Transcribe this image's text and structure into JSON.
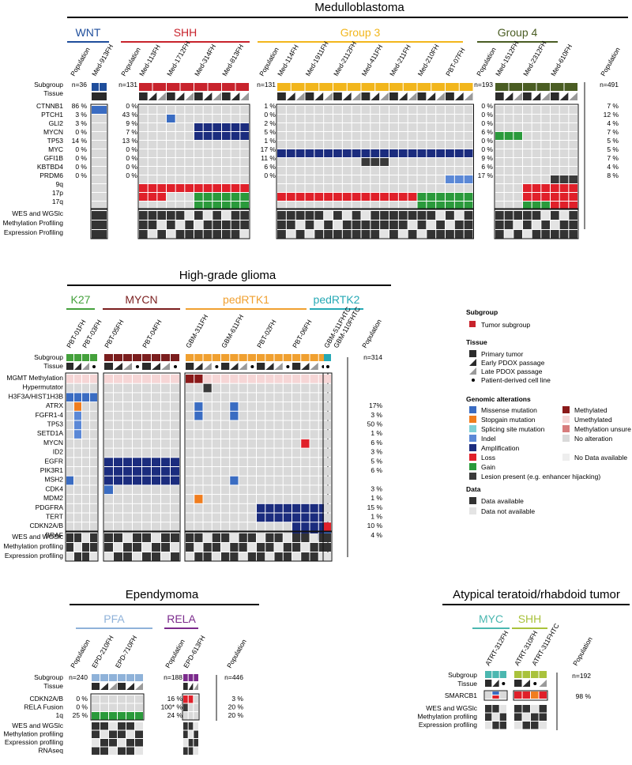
{
  "colors": {
    "wnt": "#1f4e9c",
    "shh": "#c8232c",
    "group3": "#f2b61c",
    "group4": "#4a5d23",
    "k27": "#44a13c",
    "mycn": "#7b1e1e",
    "pedrtk1": "#f0a030",
    "pedrtk2": "#26a9b5",
    "pfa": "#8fb2d9",
    "rela": "#7b2a8c",
    "atrt_myc": "#4bb7b0",
    "atrt_shh": "#a9c23c",
    "missense": "#3a6cc2",
    "stopgain": "#f07d1e",
    "splicing": "#7fd0d6",
    "indel": "#5b88d6",
    "amplification": "#1b2c7e",
    "loss": "#e0202a",
    "gain": "#2a9a3b",
    "lesion": "#3a3a3a",
    "methylated": "#8a1a1a",
    "unmethylated": "#f6d6d6",
    "meth_unsure": "#d77c7c",
    "no_alt": "#d9d9d9",
    "no_data": "#eeeeee",
    "data_available": "#333333",
    "data_not_available": "#e4e4e4"
  },
  "medulloblastoma": {
    "title": "Medulloblastoma",
    "subgroups": [
      {
        "name": "WNT",
        "color": "#1f4e9c",
        "population_n": "n=36",
        "samples": [
          "Med-913FH"
        ],
        "percentages": [
          "86 %",
          "3 %",
          "3 %",
          "0 %",
          "14 %",
          "0 %",
          "0 %",
          "0 %",
          "0 %"
        ]
      },
      {
        "name": "SHH",
        "color": "#c8232c",
        "population_n": "n=131",
        "samples": [
          "Med-113FH",
          "Med-1712FH",
          "Med-314FH",
          "Med-813FH"
        ],
        "percentages": [
          "0 %",
          "43 %",
          "9 %",
          "7 %",
          "13 %",
          "0 %",
          "0 %",
          "0 %",
          "0 %"
        ]
      },
      {
        "name": "Group 3",
        "color": "#f2b61c",
        "population_n": "n=131",
        "samples": [
          "Med-114FH",
          "Med-1911FH",
          "Med-2112FH",
          "Med-411FH",
          "Med-211FH",
          "Med-210FH",
          "PBT-07FH"
        ],
        "percentages": [
          "1 %",
          "0 %",
          "2 %",
          "5 %",
          "1 %",
          "17 %",
          "11 %",
          "6 %",
          "0 %"
        ]
      },
      {
        "name": "Group 4",
        "color": "#4a5d23",
        "population_n": "n=193",
        "samples": [
          "Med-1512FH",
          "Med-2312FH",
          "Med-610FH"
        ],
        "percentages": [
          "0 %",
          "0 %",
          "0 %",
          "6 %",
          "0 %",
          "0 %",
          "9 %",
          "6 %",
          "17 %"
        ]
      }
    ],
    "total_n": "n=491",
    "total_percentages": [
      "7 %",
      "12 %",
      "4 %",
      "7 %",
      "5 %",
      "5 %",
      "7 %",
      "4 %",
      "8 %"
    ],
    "row_labels": [
      "Subgroup",
      "Tissue",
      "CTNNB1",
      "PTCH1",
      "GLI2",
      "MYCN",
      "TP53",
      "MYC",
      "GFI1B",
      "KBTBD4",
      "PRDM6",
      "9q",
      "17p",
      "17q",
      "WES and WGSlc",
      "Methylation Profiling",
      "Expression Profiling"
    ],
    "population_header": "Population"
  },
  "hgg": {
    "title": "High-grade glioma",
    "subgroups": [
      {
        "name": "K27",
        "color": "#44a13c",
        "samples": [
          "PBT-01FH",
          "PBT-03FH"
        ]
      },
      {
        "name": "MYCN",
        "color": "#7b1e1e",
        "samples": [
          "PBT-05FH",
          "PBT-04FH"
        ]
      },
      {
        "name": "pedRTK1",
        "color": "#f0a030",
        "samples": [
          "GBM-311FH",
          "GBM-611FH",
          "PBT-02FH",
          "PBT-06FH"
        ]
      },
      {
        "name": "pedRTK2",
        "color": "#26a9b5",
        "samples": [
          "GBM-511FHTC",
          "GBM-110FHTC"
        ]
      }
    ],
    "total_n": "n=314",
    "row_labels": [
      "Subgroup",
      "Tissue",
      "MGMT Methylation",
      "Hypermutator",
      "H3F3A/HIST1H3B",
      "ATRX",
      "FGFR1-4",
      "TP53",
      "SETD1A",
      "MYCN",
      "ID2",
      "EGFR",
      "PIK3R1",
      "MSH2",
      "CDK4",
      "MDM2",
      "PDGFRA",
      "TERT",
      "CDKN2A/B",
      "BRAF",
      "WES and WGSlc",
      "Methylation profiling",
      "Expression profiling"
    ],
    "percentages": [
      "",
      "",
      "",
      "",
      "",
      "17%",
      "3 %",
      "50 %",
      "1 %",
      "6 %",
      "3 %",
      "5 %",
      "6 %",
      "",
      "3 %",
      "1 %",
      "15 %",
      "1 %",
      "10 %",
      "4 %"
    ],
    "population_header": "Population"
  },
  "legend": {
    "subgroup_title": "Subgroup",
    "subgroup_item": "Tumor subgroup",
    "tissue_title": "Tissue",
    "tissue_items": [
      "Primary tumor",
      "Early PDOX passage",
      "Late PDOX passage",
      "Patient-derived cell line"
    ],
    "genomic_title": "Genomic alterations",
    "genomic_left": [
      "Missense mutation",
      "Stopgain mutation",
      "Splicing site mutation",
      "Indel",
      "Amplification",
      "Loss",
      "Gain",
      "Lesion present (e.g. enhancer hijacking)"
    ],
    "genomic_right": [
      "Methylated",
      "Umethylated",
      "Methylation unsure",
      "No alteration",
      "",
      "No Data available"
    ],
    "data_title": "Data",
    "data_items": [
      "Data available",
      "Data not available"
    ]
  },
  "ependymoma": {
    "title": "Ependymoma",
    "subgroups": [
      {
        "name": "PFA",
        "color": "#8fb2d9",
        "population_n": "n=240",
        "samples": [
          "EPD-210FH",
          "EPD-710FH"
        ],
        "percentages": [
          "0 %",
          "0 %",
          "25 %"
        ]
      },
      {
        "name": "RELA",
        "color": "#7b2a8c",
        "population_n": "n=188",
        "samples": [
          "EPD-613FH"
        ],
        "percentages": [
          "16 %",
          "100* %",
          "24 %"
        ]
      }
    ],
    "total_n": "n=446",
    "total_percentages": [
      "3 %",
      "20 %",
      "20 %"
    ],
    "row_labels": [
      "Subgroup",
      "Tissue",
      "CDKN2A/B",
      "RELA Fusion",
      "1q",
      "WES and WGSlc",
      "Methylation profiling",
      "Expression profiling",
      "RNAseq"
    ],
    "population_header": "Population"
  },
  "atrt": {
    "title": "Atypical teratoid/rhabdoid tumor",
    "subgroups": [
      {
        "name": "MYC",
        "color": "#4bb7b0",
        "samples": [
          "ATRT-312FH"
        ]
      },
      {
        "name": "SHH",
        "color": "#a9c23c",
        "samples": [
          "ATRT-310FH",
          "ATRT-311FHTC"
        ]
      }
    ],
    "total_n": "n=192",
    "total_percentages": [
      "98 %"
    ],
    "row_labels": [
      "Subgroup",
      "Tissue",
      "SMARCB1",
      "WES and WGSlc",
      "Methylation profiling",
      "Expression profiling"
    ],
    "population_header": "Population"
  }
}
